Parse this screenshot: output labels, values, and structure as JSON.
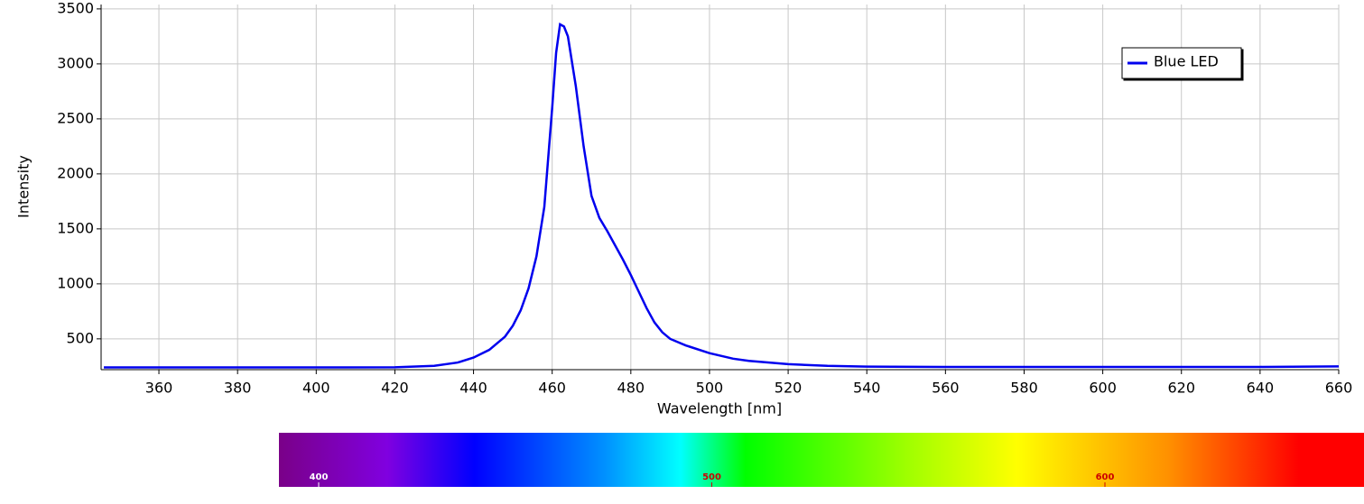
{
  "chart_data": {
    "type": "line",
    "x_label": "Wavelength [nm]",
    "y_label": "Intensity",
    "x": [
      346,
      360,
      380,
      400,
      420,
      430,
      436,
      440,
      444,
      448,
      450,
      452,
      454,
      456,
      458,
      460,
      461,
      462,
      463,
      464,
      466,
      468,
      470,
      472,
      474,
      476,
      478,
      480,
      482,
      484,
      486,
      488,
      490,
      494,
      500,
      506,
      510,
      520,
      530,
      540,
      560,
      600,
      640,
      660
    ],
    "series": [
      {
        "name": "Blue LED",
        "color": "#0000ee",
        "values": [
          240,
          240,
          240,
          240,
          242,
          255,
          285,
          330,
          400,
          520,
          620,
          760,
          960,
          1250,
          1700,
          2600,
          3100,
          3360,
          3340,
          3250,
          2800,
          2250,
          1800,
          1600,
          1480,
          1350,
          1220,
          1080,
          930,
          780,
          650,
          560,
          500,
          440,
          370,
          320,
          300,
          270,
          255,
          248,
          245,
          245,
          245,
          250
        ]
      }
    ],
    "xlim": [
      345.3,
      660
    ],
    "ylim": [
      220,
      3540
    ],
    "xticks": [
      360,
      380,
      400,
      420,
      440,
      460,
      480,
      500,
      520,
      540,
      560,
      580,
      600,
      620,
      640,
      660
    ],
    "yticks": [
      500,
      1000,
      1500,
      2000,
      2500,
      3000,
      3500
    ],
    "grid": true,
    "legend": "upper right"
  },
  "spectrum_bar": {
    "ticks": [
      400,
      500,
      600
    ]
  }
}
